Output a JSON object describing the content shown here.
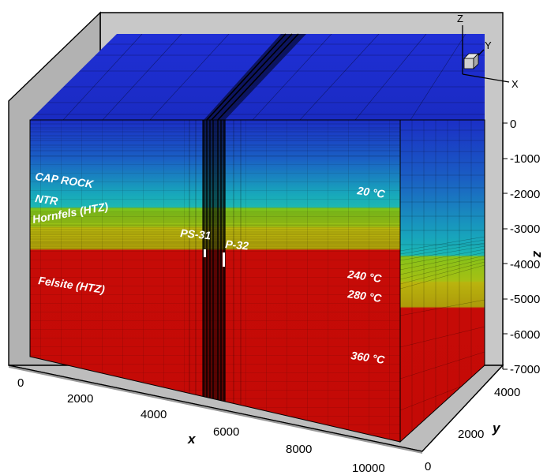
{
  "figure": {
    "layers": [
      {
        "label": "CAP ROCK",
        "color": "#1ab0b5"
      },
      {
        "label": "NTR",
        "color": "#7cc21c"
      },
      {
        "label": "Hornfels (HTZ)",
        "color": "#b8b20c"
      },
      {
        "label": "Felsite (HTZ)",
        "color": "#c60b07"
      }
    ],
    "temperatures": [
      "20 °C",
      "240 °C",
      "280 °C",
      "360 °C"
    ],
    "wells": [
      "PS-31",
      "P-32"
    ],
    "axes": {
      "x": {
        "label": "x",
        "ticks": [
          "0",
          "2000",
          "4000",
          "6000",
          "8000",
          "10000"
        ]
      },
      "y": {
        "label": "y",
        "ticks": [
          "0",
          "2000",
          "4000"
        ]
      },
      "z": {
        "label": "z",
        "ticks": [
          "0",
          "-1000",
          "-2000",
          "-3000",
          "-4000",
          "-5000",
          "-6000",
          "-7000"
        ]
      }
    },
    "triad": {
      "x": "X",
      "y": "Y",
      "z": "Z"
    },
    "colors": {
      "top": "#1e2bd0",
      "blue": "#1a2fc4",
      "cyan": "#18b2b8",
      "green": "#7cc21c",
      "yellow": "#b4b40c",
      "red": "#c60b07",
      "box_gray": "#c8c8c8"
    }
  }
}
